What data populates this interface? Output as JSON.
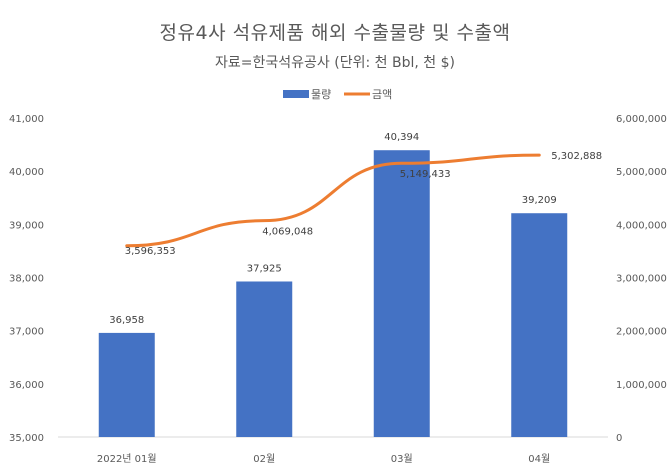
{
  "chart_data": {
    "type": "bar",
    "title": "정유4사 석유제품 해외 수출물량 및 수출액",
    "subtitle": "자료=한국석유공사 (단위: 천 Bbl, 천 $)",
    "categories": [
      "2022년 01월",
      "02월",
      "03월",
      "04월"
    ],
    "series": [
      {
        "name": "물량",
        "type": "bar",
        "axis": "left",
        "color": "#4472C4",
        "values": [
          36958,
          37925,
          40394,
          39209
        ],
        "labels": [
          "36,958",
          "37,925",
          "40,394",
          "39,209"
        ]
      },
      {
        "name": "금액",
        "type": "line",
        "axis": "right",
        "color": "#ED7D31",
        "values": [
          3596353,
          4069048,
          5149433,
          5302888
        ],
        "labels": [
          "3,596,353",
          "4,069,048",
          "5,149,433",
          "5,302,888"
        ]
      }
    ],
    "y_left": {
      "min": 35000,
      "max": 41000,
      "ticks": [
        "35,000",
        "36,000",
        "37,000",
        "38,000",
        "39,000",
        "40,000",
        "41,000"
      ]
    },
    "y_right": {
      "min": 0,
      "max": 6000000,
      "ticks": [
        "0",
        "1,000,000",
        "2,000,000",
        "3,000,000",
        "4,000,000",
        "5,000,000",
        "6,000,000"
      ]
    },
    "legend_position": "top",
    "grid": false
  }
}
